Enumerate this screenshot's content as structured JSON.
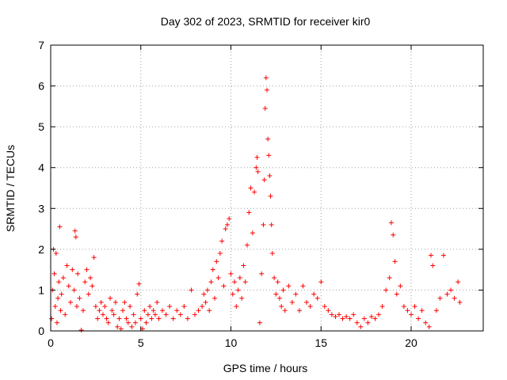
{
  "chart_data": {
    "type": "scatter",
    "title": "Day 302 of 2023, SRMTID for receiver kir0",
    "xlabel": "GPS time / hours",
    "ylabel": "SRMTID / TECUs",
    "xlim": [
      0,
      24
    ],
    "ylim": [
      0,
      7
    ],
    "xticks": [
      0,
      5,
      10,
      15,
      20
    ],
    "yticks": [
      0,
      1,
      2,
      3,
      4,
      5,
      6,
      7
    ],
    "grid": true,
    "marker": "+",
    "color": "#ff0000",
    "series": [
      {
        "name": "SRMTID",
        "points": [
          [
            0.05,
            0.3
          ],
          [
            0.1,
            1.0
          ],
          [
            0.15,
            2.0
          ],
          [
            0.2,
            1.4
          ],
          [
            0.25,
            0.6
          ],
          [
            0.3,
            1.9
          ],
          [
            0.35,
            0.2
          ],
          [
            0.4,
            0.8
          ],
          [
            0.45,
            1.2
          ],
          [
            0.5,
            2.55
          ],
          [
            0.55,
            0.5
          ],
          [
            0.6,
            0.9
          ],
          [
            0.7,
            1.3
          ],
          [
            0.8,
            0.4
          ],
          [
            0.9,
            1.6
          ],
          [
            1.0,
            1.1
          ],
          [
            1.1,
            0.7
          ],
          [
            1.2,
            1.5
          ],
          [
            1.3,
            1.0
          ],
          [
            1.35,
            2.45
          ],
          [
            1.4,
            2.3
          ],
          [
            1.45,
            0.6
          ],
          [
            1.5,
            1.4
          ],
          [
            1.6,
            0.8
          ],
          [
            1.7,
            0.02
          ],
          [
            1.8,
            0.5
          ],
          [
            1.9,
            1.2
          ],
          [
            2.0,
            1.5
          ],
          [
            2.1,
            0.9
          ],
          [
            2.2,
            1.3
          ],
          [
            2.3,
            1.1
          ],
          [
            2.4,
            1.8
          ],
          [
            2.5,
            0.6
          ],
          [
            2.6,
            0.3
          ],
          [
            2.7,
            0.5
          ],
          [
            2.8,
            0.7
          ],
          [
            2.9,
            0.4
          ],
          [
            3.0,
            0.6
          ],
          [
            3.1,
            0.3
          ],
          [
            3.2,
            0.2
          ],
          [
            3.3,
            0.8
          ],
          [
            3.4,
            0.5
          ],
          [
            3.5,
            0.4
          ],
          [
            3.6,
            0.7
          ],
          [
            3.7,
            0.1
          ],
          [
            3.8,
            0.3
          ],
          [
            3.9,
            0.05
          ],
          [
            4.0,
            0.5
          ],
          [
            4.1,
            0.7
          ],
          [
            4.2,
            0.3
          ],
          [
            4.3,
            0.2
          ],
          [
            4.4,
            0.6
          ],
          [
            4.5,
            0.1
          ],
          [
            4.6,
            0.4
          ],
          [
            4.7,
            0.2
          ],
          [
            4.8,
            0.9
          ],
          [
            4.9,
            1.15
          ],
          [
            5.0,
            0.3
          ],
          [
            5.1,
            0.05
          ],
          [
            5.2,
            0.5
          ],
          [
            5.3,
            0.2
          ],
          [
            5.4,
            0.4
          ],
          [
            5.5,
            0.6
          ],
          [
            5.6,
            0.3
          ],
          [
            5.7,
            0.5
          ],
          [
            5.8,
            0.4
          ],
          [
            5.9,
            0.7
          ],
          [
            6.0,
            0.3
          ],
          [
            6.2,
            0.5
          ],
          [
            6.4,
            0.4
          ],
          [
            6.6,
            0.6
          ],
          [
            6.8,
            0.3
          ],
          [
            7.0,
            0.5
          ],
          [
            7.2,
            0.4
          ],
          [
            7.4,
            0.6
          ],
          [
            7.6,
            0.3
          ],
          [
            7.8,
            1.0
          ],
          [
            8.0,
            0.4
          ],
          [
            8.2,
            0.5
          ],
          [
            8.4,
            0.6
          ],
          [
            8.5,
            0.9
          ],
          [
            8.6,
            0.7
          ],
          [
            8.7,
            1.0
          ],
          [
            8.8,
            0.5
          ],
          [
            8.9,
            1.2
          ],
          [
            9.0,
            1.5
          ],
          [
            9.1,
            0.8
          ],
          [
            9.2,
            1.7
          ],
          [
            9.3,
            1.3
          ],
          [
            9.4,
            1.9
          ],
          [
            9.5,
            2.2
          ],
          [
            9.6,
            1.1
          ],
          [
            9.7,
            2.5
          ],
          [
            9.8,
            2.6
          ],
          [
            9.9,
            2.75
          ],
          [
            10.0,
            1.4
          ],
          [
            10.1,
            0.9
          ],
          [
            10.2,
            1.2
          ],
          [
            10.3,
            0.6
          ],
          [
            10.4,
            1.0
          ],
          [
            10.5,
            1.3
          ],
          [
            10.6,
            0.8
          ],
          [
            10.7,
            1.6
          ],
          [
            10.8,
            1.2
          ],
          [
            10.9,
            2.1
          ],
          [
            11.0,
            2.9
          ],
          [
            11.1,
            3.5
          ],
          [
            11.2,
            2.4
          ],
          [
            11.3,
            3.4
          ],
          [
            11.4,
            4.0
          ],
          [
            11.45,
            4.25
          ],
          [
            11.5,
            3.9
          ],
          [
            11.6,
            0.2
          ],
          [
            11.7,
            1.4
          ],
          [
            11.8,
            2.6
          ],
          [
            11.85,
            3.7
          ],
          [
            11.9,
            5.45
          ],
          [
            11.95,
            6.2
          ],
          [
            12.0,
            5.9
          ],
          [
            12.05,
            4.7
          ],
          [
            12.1,
            4.3
          ],
          [
            12.15,
            3.8
          ],
          [
            12.2,
            3.3
          ],
          [
            12.25,
            2.6
          ],
          [
            12.3,
            1.9
          ],
          [
            12.4,
            1.3
          ],
          [
            12.5,
            0.9
          ],
          [
            12.6,
            1.2
          ],
          [
            12.7,
            0.8
          ],
          [
            12.8,
            0.6
          ],
          [
            12.9,
            1.0
          ],
          [
            13.0,
            0.5
          ],
          [
            13.2,
            1.1
          ],
          [
            13.4,
            0.7
          ],
          [
            13.6,
            0.9
          ],
          [
            13.8,
            0.5
          ],
          [
            14.0,
            1.1
          ],
          [
            14.2,
            0.7
          ],
          [
            14.4,
            0.6
          ],
          [
            14.6,
            0.9
          ],
          [
            14.8,
            0.8
          ],
          [
            15.0,
            1.2
          ],
          [
            15.2,
            0.6
          ],
          [
            15.4,
            0.5
          ],
          [
            15.6,
            0.4
          ],
          [
            15.8,
            0.35
          ],
          [
            16.0,
            0.4
          ],
          [
            16.2,
            0.3
          ],
          [
            16.4,
            0.35
          ],
          [
            16.6,
            0.3
          ],
          [
            16.8,
            0.4
          ],
          [
            17.0,
            0.2
          ],
          [
            17.2,
            0.1
          ],
          [
            17.4,
            0.3
          ],
          [
            17.6,
            0.2
          ],
          [
            17.8,
            0.35
          ],
          [
            18.0,
            0.3
          ],
          [
            18.2,
            0.4
          ],
          [
            18.4,
            0.6
          ],
          [
            18.6,
            1.0
          ],
          [
            18.8,
            1.3
          ],
          [
            18.9,
            2.65
          ],
          [
            19.0,
            2.35
          ],
          [
            19.1,
            1.7
          ],
          [
            19.2,
            0.9
          ],
          [
            19.4,
            1.1
          ],
          [
            19.6,
            0.6
          ],
          [
            19.8,
            0.5
          ],
          [
            20.0,
            0.4
          ],
          [
            20.2,
            0.6
          ],
          [
            20.4,
            0.3
          ],
          [
            20.6,
            0.5
          ],
          [
            20.8,
            0.2
          ],
          [
            21.0,
            0.1
          ],
          [
            21.1,
            1.85
          ],
          [
            21.2,
            1.6
          ],
          [
            21.4,
            0.5
          ],
          [
            21.6,
            0.8
          ],
          [
            21.8,
            1.85
          ],
          [
            22.0,
            0.9
          ],
          [
            22.2,
            1.0
          ],
          [
            22.4,
            0.8
          ],
          [
            22.6,
            1.2
          ],
          [
            22.7,
            0.7
          ]
        ]
      }
    ]
  }
}
